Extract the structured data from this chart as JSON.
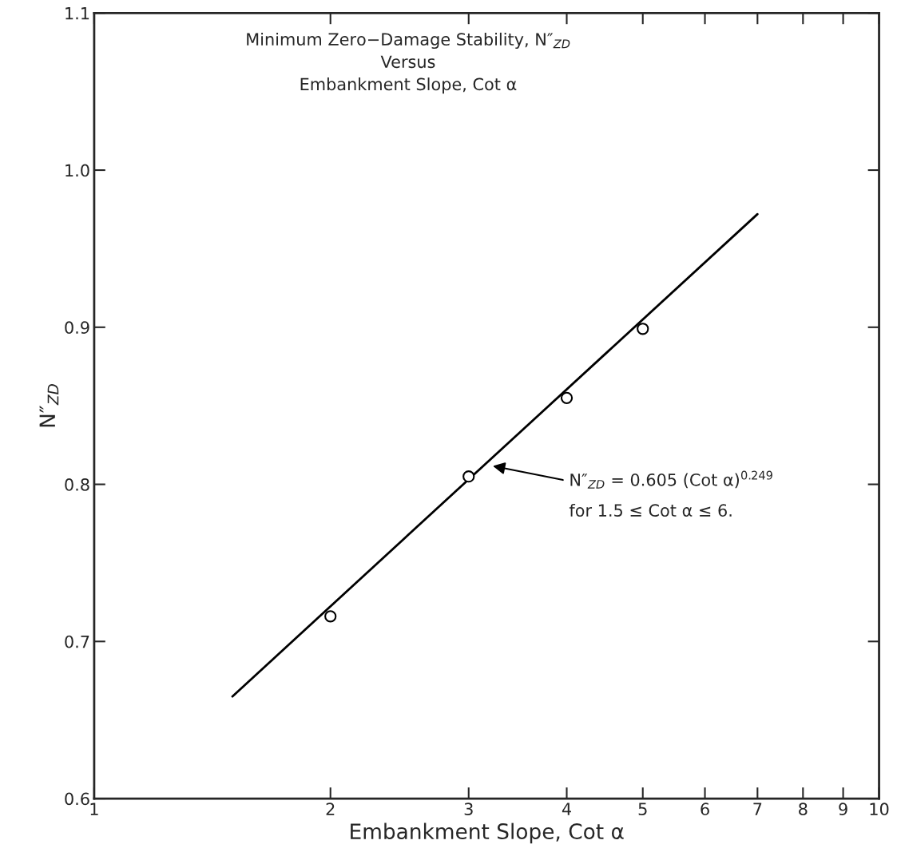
{
  "chart_data": {
    "type": "scatter",
    "title": "Minimum Zero−Damage Stability, N″$_{ZD}$\nVersus\nEmbankment Slope, Cot α",
    "xlabel": "Embankment Slope, Cot α",
    "ylabel": "N″$_{ZD}$",
    "log": "x",
    "xlim": [
      1,
      10
    ],
    "ylim": [
      0.6,
      1.1
    ],
    "xticks": [
      1,
      2,
      3,
      4,
      5,
      6,
      7,
      8,
      9,
      10
    ],
    "yticks": [
      {
        "value": 0.6,
        "label": "0.6"
      },
      {
        "value": 0.7,
        "label": "0.7"
      },
      {
        "value": 0.8,
        "label": "0.8"
      },
      {
        "value": 0.9,
        "label": "0.9"
      },
      {
        "value": 1.0,
        "label": "1.0"
      },
      {
        "value": 1.1,
        "label": "1.1"
      }
    ],
    "grid": false,
    "series": [
      {
        "marker": "circle",
        "color": "#000000",
        "x": [
          2,
          3,
          4,
          5
        ],
        "values": [
          0.716,
          0.805,
          0.855,
          0.899
        ]
      },
      {
        "type": "line",
        "marker": "none",
        "line_style": "solid",
        "color": "#000000",
        "x": [
          1.5,
          7
        ],
        "values": [
          0.665,
          0.972
        ]
      }
    ],
    "annotations": [
      "N″$_{ZD}$ = 0.605 (Cot α)$^{0.249}$",
      "for 1.5 ≤ Cot α ≤ 6."
    ]
  }
}
